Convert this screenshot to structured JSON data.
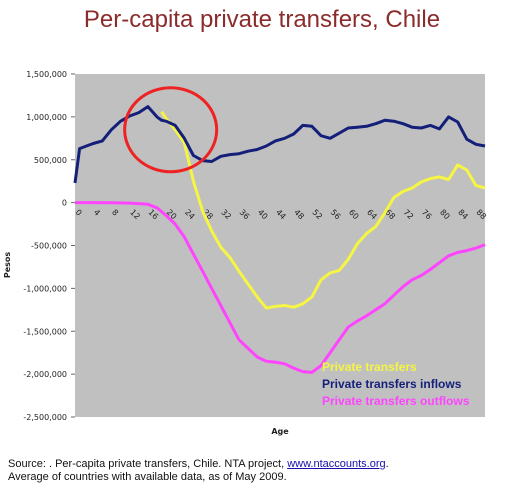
{
  "title": "Per-capita private transfers, Chile",
  "footer": {
    "line1_prefix": "Source: .  Per-capita private transfers, Chile. NTA project, ",
    "link": "www.ntaccounts.org",
    "line1_suffix": ".",
    "line2": "Average of countries with available data, as of May 2009."
  },
  "chart_data": {
    "type": "line",
    "xlabel": "Age",
    "ylabel": "Pesos",
    "xlim": [
      0,
      90
    ],
    "ylim": [
      -2500000,
      1500000
    ],
    "yticks": [
      1500000,
      1000000,
      500000,
      0,
      -500000,
      -1000000,
      -1500000,
      -2000000,
      -2500000
    ],
    "ytick_labels": [
      "1,500,000",
      "1,000,000",
      "500,000",
      "0",
      "-500,000",
      "-1,000,000",
      "-1,500,000",
      "-2,000,000",
      "-2,500,000"
    ],
    "xticks": [
      0,
      4,
      8,
      12,
      16,
      20,
      24,
      28,
      32,
      36,
      40,
      44,
      48,
      52,
      56,
      60,
      64,
      68,
      72,
      76,
      80,
      84,
      88
    ],
    "grid": false,
    "legend": "bottom-right",
    "series": [
      {
        "name": "Private transfers",
        "color": "#f5f542",
        "x": [
          19,
          20,
          22,
          24,
          26,
          28,
          30,
          32,
          34,
          36,
          38,
          40,
          42,
          44,
          46,
          48,
          50,
          52,
          54,
          56,
          58,
          60,
          62,
          64,
          66,
          68,
          70,
          72,
          74,
          76,
          78,
          80,
          82,
          84,
          86,
          88,
          90
        ],
        "y": [
          1060000,
          980000,
          850000,
          700000,
          250000,
          -100000,
          -330000,
          -520000,
          -640000,
          -800000,
          -950000,
          -1100000,
          -1230000,
          -1210000,
          -1200000,
          -1220000,
          -1180000,
          -1100000,
          -900000,
          -820000,
          -790000,
          -660000,
          -480000,
          -360000,
          -280000,
          -120000,
          60000,
          130000,
          170000,
          240000,
          280000,
          300000,
          270000,
          440000,
          380000,
          200000,
          170000
        ]
      },
      {
        "name": "Private transfers inflows",
        "color": "#141f7a",
        "x": [
          0,
          1,
          2,
          4,
          6,
          8,
          10,
          12,
          14,
          16,
          18,
          19,
          20,
          22,
          24,
          26,
          28,
          30,
          32,
          34,
          36,
          38,
          40,
          42,
          44,
          46,
          48,
          50,
          52,
          54,
          56,
          58,
          60,
          62,
          64,
          66,
          68,
          70,
          72,
          74,
          76,
          78,
          80,
          82,
          84,
          86,
          88,
          90
        ],
        "y": [
          230000,
          630000,
          650000,
          690000,
          720000,
          850000,
          950000,
          1010000,
          1050000,
          1120000,
          1000000,
          960000,
          950000,
          900000,
          750000,
          550000,
          490000,
          480000,
          540000,
          560000,
          570000,
          600000,
          620000,
          660000,
          720000,
          750000,
          800000,
          900000,
          890000,
          780000,
          750000,
          810000,
          870000,
          880000,
          890000,
          920000,
          960000,
          950000,
          920000,
          880000,
          870000,
          900000,
          860000,
          1000000,
          940000,
          740000,
          680000,
          660000
        ]
      },
      {
        "name": "Private transfers outflows",
        "color": "#ff44ff",
        "x": [
          0,
          4,
          8,
          12,
          16,
          18,
          20,
          22,
          24,
          26,
          28,
          30,
          32,
          34,
          36,
          38,
          40,
          42,
          44,
          46,
          48,
          50,
          52,
          54,
          56,
          58,
          60,
          62,
          64,
          66,
          68,
          70,
          72,
          74,
          76,
          78,
          80,
          82,
          84,
          86,
          88,
          90
        ],
        "y": [
          0,
          0,
          -2000,
          -5000,
          -20000,
          -60000,
          -150000,
          -250000,
          -400000,
          -600000,
          -800000,
          -1000000,
          -1200000,
          -1400000,
          -1600000,
          -1700000,
          -1800000,
          -1850000,
          -1860000,
          -1880000,
          -1930000,
          -1970000,
          -1980000,
          -1900000,
          -1750000,
          -1600000,
          -1450000,
          -1380000,
          -1320000,
          -1250000,
          -1180000,
          -1080000,
          -980000,
          -900000,
          -850000,
          -780000,
          -700000,
          -620000,
          -580000,
          -560000,
          -530000,
          -490000
        ]
      }
    ],
    "annotation": {
      "shape": "ellipse",
      "color": "#ee2222",
      "cx": 21,
      "cy": 850000
    }
  }
}
